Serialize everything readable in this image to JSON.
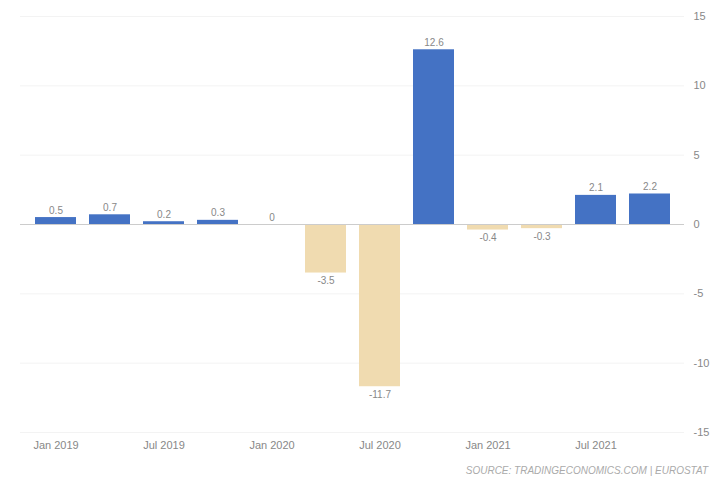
{
  "chart_data": {
    "type": "bar",
    "categories": [
      "Jan 2019",
      null,
      "Jul 2019",
      null,
      "Jan 2020",
      null,
      "Jul 2020",
      null,
      "Jan 2021",
      null,
      "Jul 2021",
      null
    ],
    "values": [
      0.5,
      0.7,
      0.2,
      0.3,
      0.0,
      -3.5,
      -11.7,
      12.6,
      -0.4,
      -0.3,
      2.1,
      2.2
    ],
    "colors": [
      "#4472c4",
      "#4472c4",
      "#4472c4",
      "#4472c4",
      "#4472c4",
      "#f0dbb0",
      "#f0dbb0",
      "#4472c4",
      "#f0dbb0",
      "#f0dbb0",
      "#4472c4",
      "#4472c4"
    ],
    "ylim": [
      -15,
      15
    ],
    "yticks": [
      -15,
      -10,
      -5,
      0,
      5,
      10,
      15
    ],
    "grid": true,
    "data_labels": true,
    "caption": "SOURCE: TRADINGECONOMICS.COM | EUROSTAT"
  }
}
